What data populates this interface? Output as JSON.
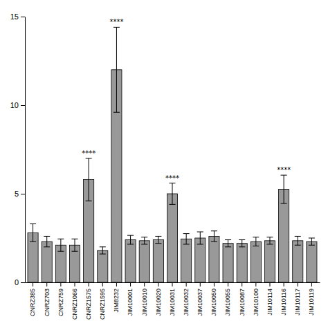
{
  "chart_data": {
    "type": "bar",
    "categories": [
      "CNRZ385",
      "CNRZ703",
      "CNRZ759",
      "CNRZ1066",
      "CNRZ1575",
      "CNRZ1595",
      "JIM8232",
      "JIM10001",
      "JIM10010",
      "JIM10020",
      "JIM10031",
      "JIM10032",
      "JIM10037",
      "JIM10050",
      "JIM10055",
      "JIM10087",
      "JIM10100",
      "JIM10114",
      "JIM10116",
      "JIM10117",
      "JIM10119"
    ],
    "values": [
      2.8,
      2.3,
      2.1,
      2.1,
      5.8,
      1.8,
      12.0,
      2.4,
      2.35,
      2.4,
      5.0,
      2.45,
      2.5,
      2.6,
      2.2,
      2.2,
      2.3,
      2.35,
      5.25,
      2.35,
      2.3
    ],
    "errors": [
      0.5,
      0.3,
      0.35,
      0.35,
      1.2,
      0.2,
      2.4,
      0.25,
      0.2,
      0.2,
      0.6,
      0.3,
      0.35,
      0.3,
      0.2,
      0.2,
      0.25,
      0.2,
      0.8,
      0.25,
      0.2
    ],
    "color": "#999999",
    "annotations": [
      {
        "category": "CNRZ1575",
        "text": "****"
      },
      {
        "category": "JIM8232",
        "text": "****"
      },
      {
        "category": "JIM10031",
        "text": "****"
      },
      {
        "category": "JIM10116",
        "text": "****"
      }
    ],
    "ylim": [
      0,
      15
    ],
    "yticks": [
      0,
      5,
      10,
      15
    ],
    "grid": false
  }
}
